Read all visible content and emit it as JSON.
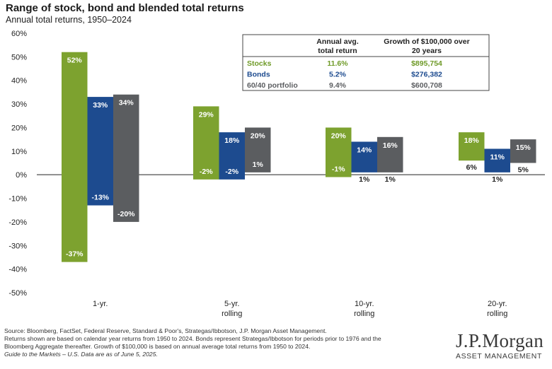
{
  "colors": {
    "stocks": "#7da22f",
    "bonds": "#1d4b8f",
    "portfolio": "#5b5d60",
    "table_stocks_text": "#6f9a28",
    "table_bonds_text": "#1d4b8f",
    "table_portfolio_text": "#5b5d60"
  },
  "chart_data": {
    "type": "bar",
    "subtype": "floating-range",
    "title": "Range of stock, bond and blended total returns",
    "subtitle": "Annual total returns, 1950–2024",
    "ylim": [
      -50,
      60
    ],
    "yticks": [
      60,
      50,
      40,
      30,
      20,
      10,
      0,
      -10,
      -20,
      -30,
      -40,
      -50
    ],
    "ytick_labels": [
      "60%",
      "50%",
      "40%",
      "30%",
      "20%",
      "10%",
      "0%",
      "-10%",
      "-20%",
      "-30%",
      "-40%",
      "-50%"
    ],
    "grid": false,
    "categories": [
      {
        "label1": "1-yr.",
        "label2": ""
      },
      {
        "label1": "5-yr.",
        "label2": "rolling"
      },
      {
        "label1": "10-yr.",
        "label2": "rolling"
      },
      {
        "label1": "20-yr.",
        "label2": "rolling"
      }
    ],
    "series": [
      {
        "name": "Stocks",
        "color_key": "stocks",
        "max": [
          52,
          29,
          20,
          18
        ],
        "min": [
          -37,
          -2,
          -1,
          6
        ],
        "max_labels": [
          "52%",
          "29%",
          "20%",
          "18%"
        ],
        "min_labels": [
          "-37%",
          "-2%",
          "-1%",
          "6%"
        ]
      },
      {
        "name": "Bonds",
        "color_key": "bonds",
        "max": [
          33,
          18,
          14,
          11
        ],
        "min": [
          -13,
          -2,
          1,
          1
        ],
        "max_labels": [
          "33%",
          "18%",
          "14%",
          "11%"
        ],
        "min_labels": [
          "-13%",
          "-2%",
          "1%",
          "1%"
        ]
      },
      {
        "name": "60/40 portfolio",
        "color_key": "portfolio",
        "max": [
          34,
          20,
          16,
          15
        ],
        "min": [
          -20,
          1,
          1,
          5
        ],
        "max_labels": [
          "34%",
          "20%",
          "16%",
          "15%"
        ],
        "min_labels": [
          "-20%",
          "1%",
          "1%",
          "5%"
        ]
      }
    ]
  },
  "summary_table": {
    "col1_header_line1": "Annual avg.",
    "col1_header_line2": "total return",
    "col2_header_line1": "Growth of $100,000 over",
    "col2_header_line2": "20 years",
    "rows": [
      {
        "name": "Stocks",
        "avg": "11.6%",
        "growth": "$895,754",
        "color_key": "table_stocks_text"
      },
      {
        "name": "Bonds",
        "avg": "5.2%",
        "growth": "$276,382",
        "color_key": "table_bonds_text"
      },
      {
        "name": "60/40 portfolio",
        "avg": "9.4%",
        "growth": "$600,708",
        "color_key": "table_portfolio_text"
      }
    ]
  },
  "footer": {
    "source_line1": "Source: Bloomberg, FactSet, Federal Reserve, Standard & Poor's, Strategas/Ibbotson, J.P. Morgan Asset Management.",
    "source_line2": "Returns shown are based on calendar year returns from 1950 to 2024. Bonds represent Strategas/Ibbotson for periods prior to 1976 and the",
    "source_line3": "Bloomberg Aggregate thereafter. Growth of $100,000 is based on annual average total returns from 1950 to 2024.",
    "source_line4": "Guide to the Markets – U.S. Data are as of June 5, 2025.",
    "brand_name": "J.P.Morgan",
    "brand_sub": "ASSET MANAGEMENT"
  }
}
